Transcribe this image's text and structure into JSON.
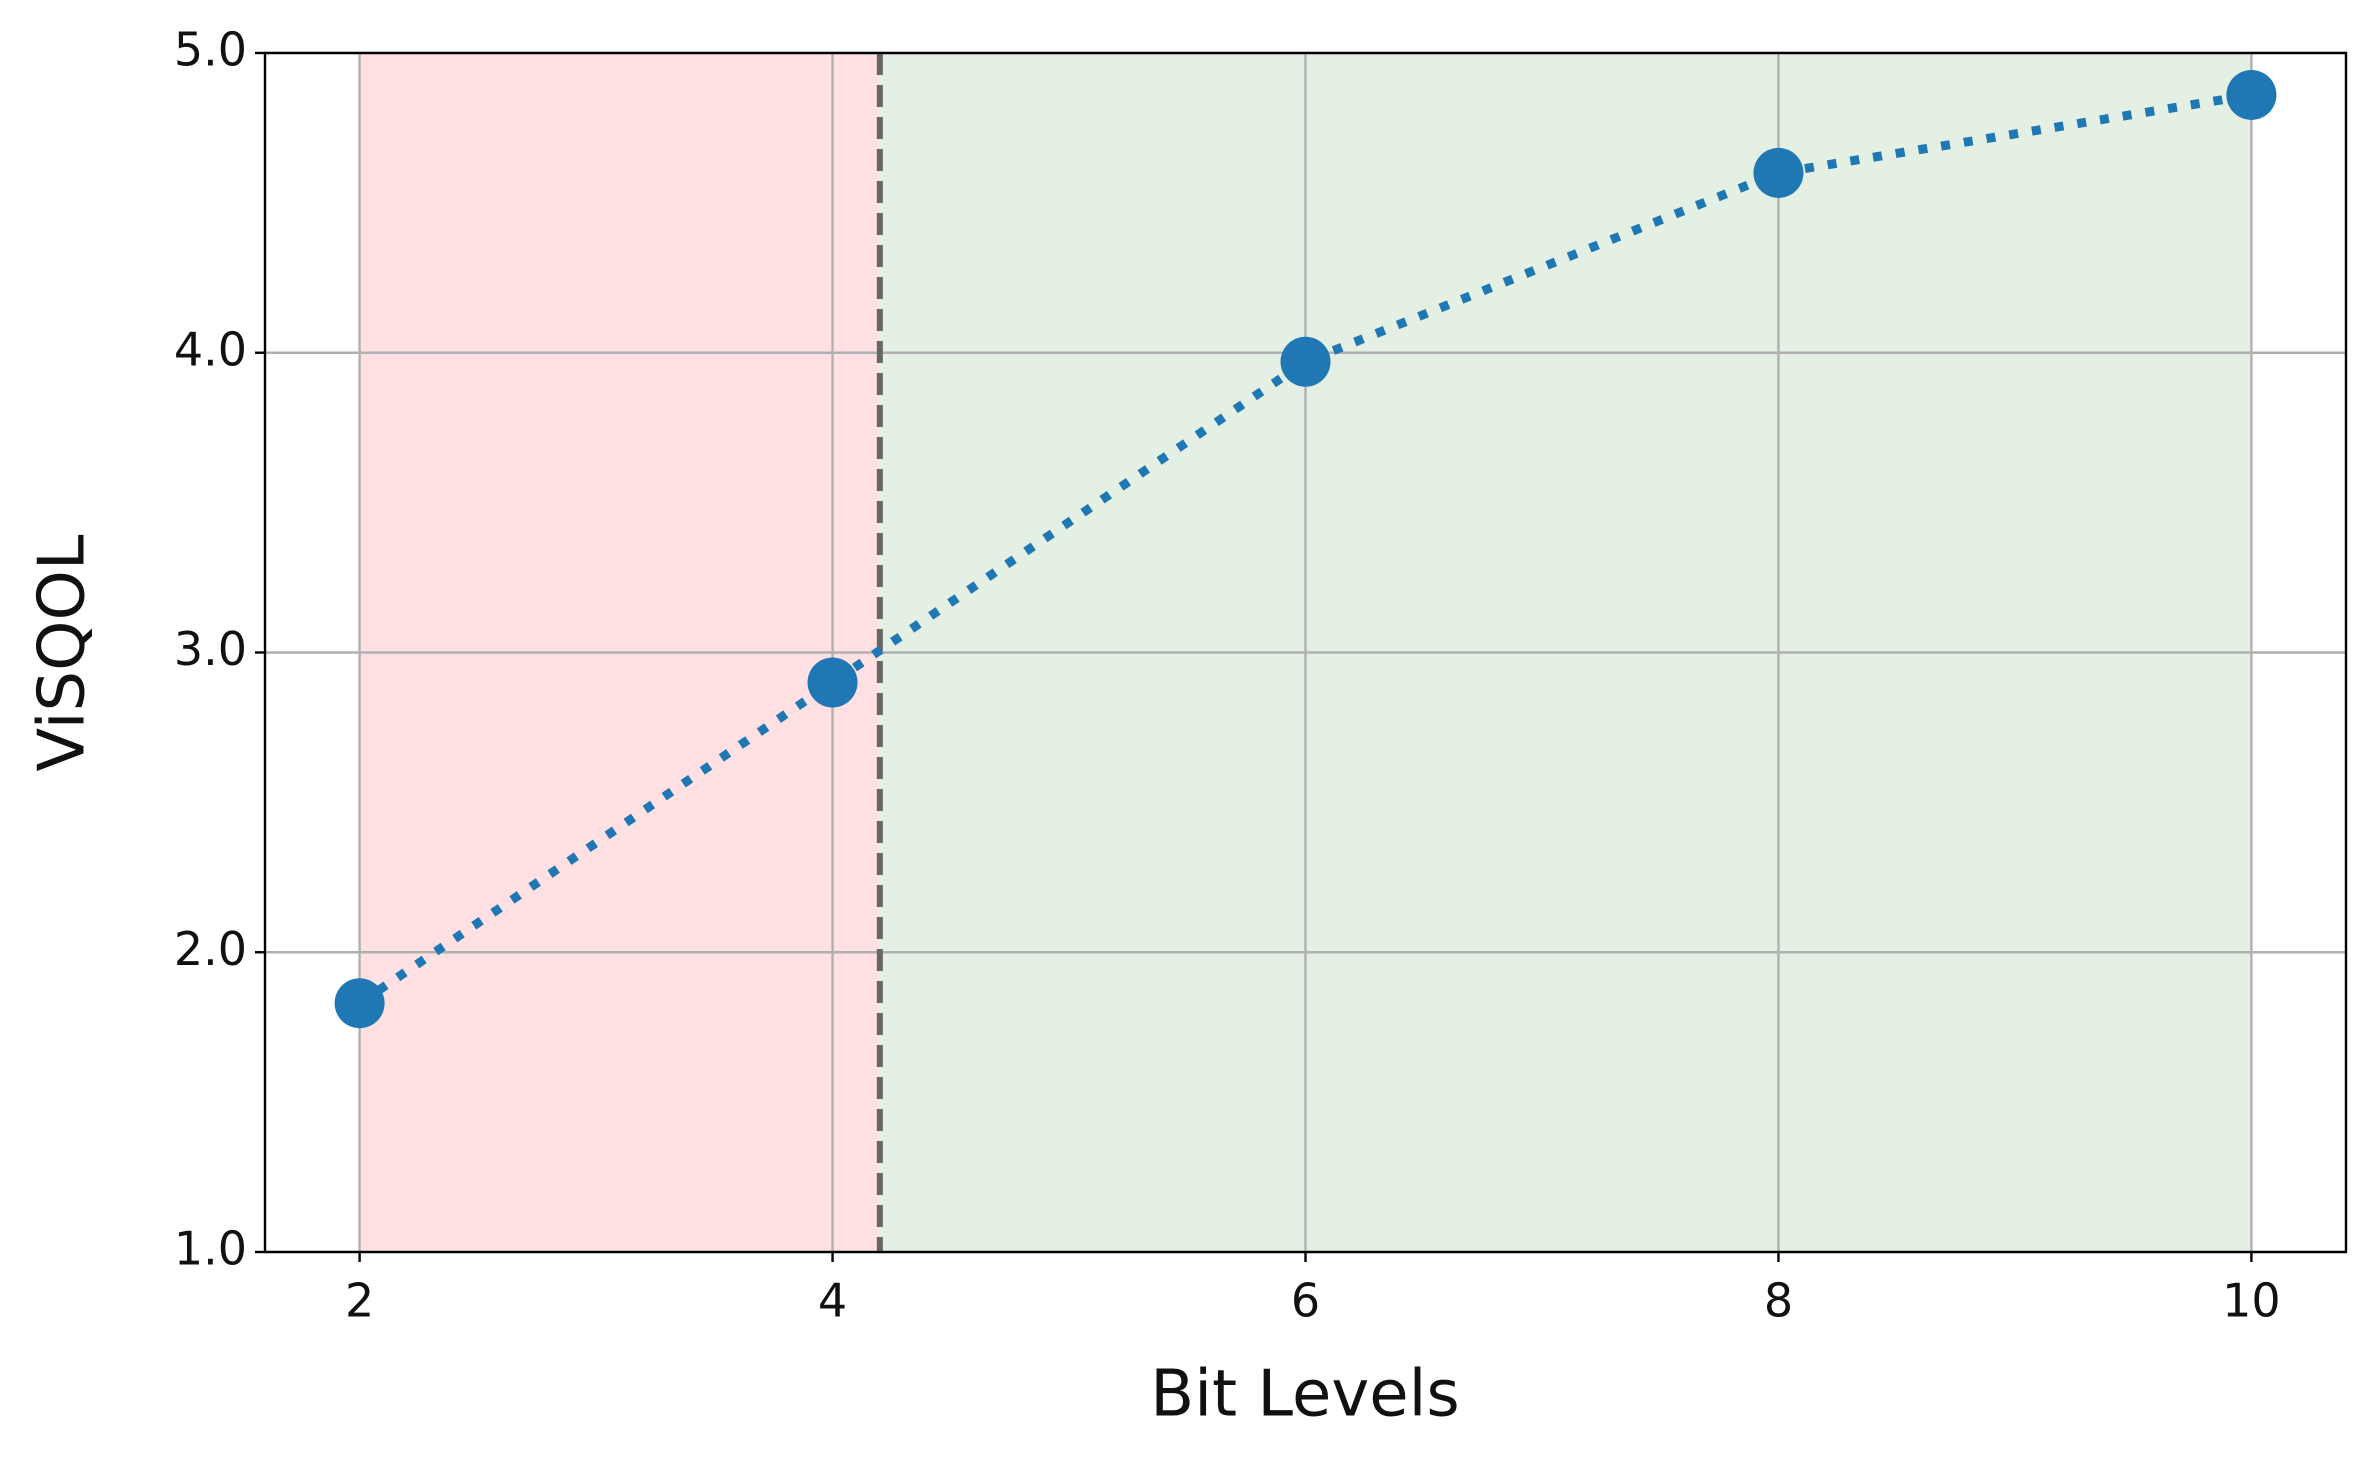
{
  "chart_data": {
    "type": "line",
    "xlabel": "Bit Levels",
    "ylabel": "ViSQOL",
    "x": [
      2,
      4,
      6,
      8,
      10
    ],
    "values": [
      1.83,
      2.9,
      3.97,
      4.6,
      4.86
    ],
    "color": "#1f77b4",
    "xlim": [
      1.6,
      10.4
    ],
    "ylim": [
      1,
      5
    ],
    "xticks": [
      2,
      4,
      6,
      8,
      10
    ],
    "yticks": [
      {
        "value": 1,
        "label": "1.0"
      },
      {
        "value": 2,
        "label": "2.0"
      },
      {
        "value": 3,
        "label": "3.0"
      },
      {
        "value": 4,
        "label": "4.0"
      },
      {
        "value": 5,
        "label": "5.0"
      }
    ],
    "grid": true,
    "regions": [
      {
        "from": 2,
        "to": 4.2,
        "color": "#ffe1e4"
      },
      {
        "from": 4.2,
        "to": 10,
        "color": "#e5f0e4"
      }
    ],
    "vline": 4.2
  }
}
